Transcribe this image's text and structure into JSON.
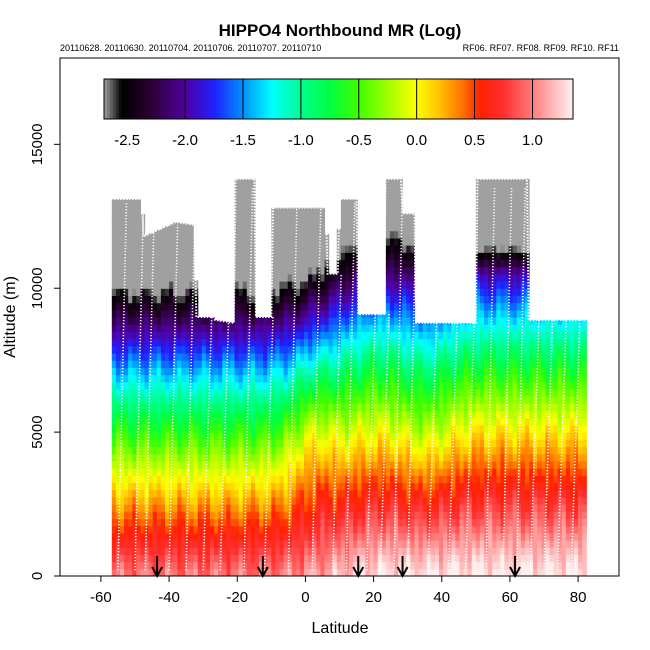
{
  "chart_data": {
    "type": "heatmap",
    "title": "HIPPO4 Northbound MR (Log)",
    "subtitle_left": "20110628. 20110630. 20110704. 20110706. 20110707. 20110710",
    "subtitle_right": "RF06. RF07. RF08. RF09. RF10. RF11",
    "xlabel": "Latitude",
    "ylabel": "Altitude (m)",
    "xlim": [
      -72,
      92
    ],
    "ylim": [
      0,
      18000
    ],
    "xticks": [
      -60,
      -40,
      -20,
      0,
      20,
      40,
      60,
      80
    ],
    "xtick_labels": [
      "-60",
      "-40",
      "-20",
      "0",
      "20",
      "40",
      "60",
      "80"
    ],
    "yticks": [
      0,
      5000,
      10000,
      15000
    ],
    "ytick_labels": [
      "0",
      "5000",
      "10000",
      "15000"
    ],
    "colorbar": {
      "range": [
        -2.7,
        1.35
      ],
      "ticks": [
        -2.5,
        -2.0,
        -1.5,
        -1.0,
        -0.5,
        0.0,
        0.5,
        1.0
      ],
      "tick_labels": [
        "-2.5",
        "-2.0",
        "-1.5",
        "-1.0",
        "-0.5",
        "0.0",
        "0.5",
        "1.0"
      ],
      "stops": [
        {
          "v": -2.7,
          "c": "#a0a0a0"
        },
        {
          "v": -2.62,
          "c": "#505050"
        },
        {
          "v": -2.55,
          "c": "#000000"
        },
        {
          "v": -2.3,
          "c": "#2a0030"
        },
        {
          "v": -2.0,
          "c": "#5000a0"
        },
        {
          "v": -1.75,
          "c": "#2020ff"
        },
        {
          "v": -1.5,
          "c": "#0090ff"
        },
        {
          "v": -1.25,
          "c": "#00ffff"
        },
        {
          "v": -1.0,
          "c": "#00ff90"
        },
        {
          "v": -0.75,
          "c": "#00ff40"
        },
        {
          "v": -0.5,
          "c": "#40ff00"
        },
        {
          "v": -0.25,
          "c": "#a0ff00"
        },
        {
          "v": 0.0,
          "c": "#ffff00"
        },
        {
          "v": 0.2,
          "c": "#ffc000"
        },
        {
          "v": 0.4,
          "c": "#ff7000"
        },
        {
          "v": 0.55,
          "c": "#ff2000"
        },
        {
          "v": 0.75,
          "c": "#ff3030"
        },
        {
          "v": 0.95,
          "c": "#ff6a6a"
        },
        {
          "v": 1.15,
          "c": "#ffb0b0"
        },
        {
          "v": 1.35,
          "c": "#fff0f0"
        }
      ]
    },
    "flight_top_profile": [
      {
        "lat": -57,
        "alt": 13100
      },
      {
        "lat": -48,
        "alt": 13100
      },
      {
        "lat": -47.5,
        "alt": 11800
      },
      {
        "lat": -38,
        "alt": 12300
      },
      {
        "lat": -32.5,
        "alt": 12200
      },
      {
        "lat": -32,
        "alt": 9000
      },
      {
        "lat": -27,
        "alt": 9000
      },
      {
        "lat": -26.5,
        "alt": 8900
      },
      {
        "lat": -21,
        "alt": 8800
      },
      {
        "lat": -20.5,
        "alt": 13800
      },
      {
        "lat": -15,
        "alt": 13800
      },
      {
        "lat": -14.5,
        "alt": 9000
      },
      {
        "lat": -10,
        "alt": 9000
      },
      {
        "lat": -9.5,
        "alt": 12800
      },
      {
        "lat": 6,
        "alt": 12800
      },
      {
        "lat": 6.5,
        "alt": 10500
      },
      {
        "lat": 9.5,
        "alt": 10500
      },
      {
        "lat": 10,
        "alt": 13100
      },
      {
        "lat": 15,
        "alt": 13100
      },
      {
        "lat": 15.5,
        "alt": 9100
      },
      {
        "lat": 23,
        "alt": 9100
      },
      {
        "lat": 23.5,
        "alt": 13800
      },
      {
        "lat": 28,
        "alt": 13800
      },
      {
        "lat": 28.5,
        "alt": 12600
      },
      {
        "lat": 32,
        "alt": 12600
      },
      {
        "lat": 32.5,
        "alt": 8800
      },
      {
        "lat": 50,
        "alt": 8800
      },
      {
        "lat": 50.5,
        "alt": 13800
      },
      {
        "lat": 65,
        "alt": 13800
      },
      {
        "lat": 65.5,
        "alt": 8900
      },
      {
        "lat": 82,
        "alt": 8900
      }
    ],
    "profile_locations": [
      {
        "lat": -55,
        "alt": 13000
      },
      {
        "lat": -50,
        "alt": 13000
      },
      {
        "lat": -47,
        "alt": 12000
      },
      {
        "lat": -40,
        "alt": 12200
      },
      {
        "lat": -35,
        "alt": 12200
      },
      {
        "lat": -30,
        "alt": 9000
      },
      {
        "lat": -25,
        "alt": 9000
      },
      {
        "lat": -18,
        "alt": 13500
      },
      {
        "lat": -12,
        "alt": 9000
      },
      {
        "lat": -5,
        "alt": 12800
      },
      {
        "lat": 2,
        "alt": 12800
      },
      {
        "lat": 8,
        "alt": 10500
      },
      {
        "lat": 12,
        "alt": 13000
      },
      {
        "lat": 18,
        "alt": 9100
      },
      {
        "lat": 22,
        "alt": 9100
      },
      {
        "lat": 26,
        "alt": 13500
      },
      {
        "lat": 30,
        "alt": 12600
      },
      {
        "lat": 36,
        "alt": 8800
      },
      {
        "lat": 42,
        "alt": 8800
      },
      {
        "lat": 47,
        "alt": 8800
      },
      {
        "lat": 53,
        "alt": 13500
      },
      {
        "lat": 58,
        "alt": 13500
      },
      {
        "lat": 62,
        "alt": 13500
      },
      {
        "lat": 66,
        "alt": 8900
      },
      {
        "lat": 70,
        "alt": 8900
      },
      {
        "lat": 74,
        "alt": 8900
      },
      {
        "lat": 78,
        "alt": 8900
      }
    ],
    "airport_arrows": [
      {
        "lat": -43.5
      },
      {
        "lat": -12.5
      },
      {
        "lat": 15.5
      },
      {
        "lat": 28.5
      },
      {
        "lat": 61.5
      }
    ]
  }
}
